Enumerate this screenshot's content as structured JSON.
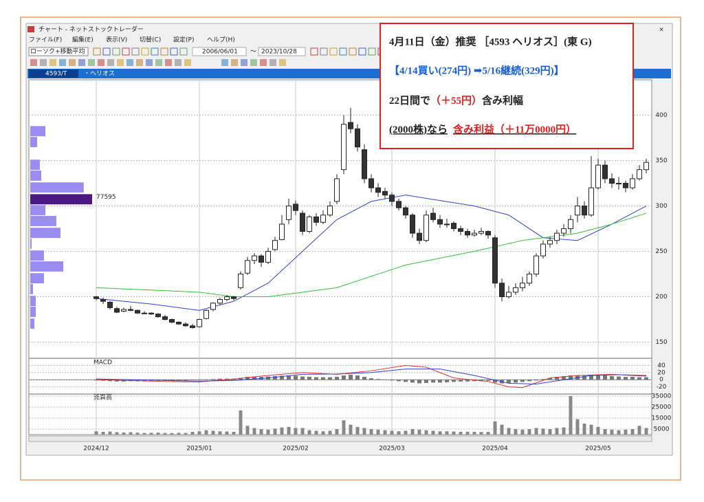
{
  "window": {
    "title": "チャート - ネットストックトレーダー",
    "close": "×",
    "menu": [
      "ファイル(F)",
      "編集(E)",
      "表示(V)",
      "切替(C)",
      "設定(P)",
      "ヘルプ(H)"
    ],
    "chart_kind": "ローソク+移動平均",
    "date_from": "2006/06/01",
    "date_sep": "～",
    "date_to": "2023/10/28",
    "code": "4593/T",
    "name": "・ヘリオス"
  },
  "annotation": {
    "line1": "4月11日（金）推奨 ［4593 ヘリオス］(東 G)",
    "line2": "【4/14買い(274円) ➡5/16継続(329円)】",
    "line3": [
      "22日間で",
      "（＋55円）",
      "含み利幅"
    ],
    "line4": [
      "(2000株)なら",
      "含み利益（＋11万0000円）"
    ]
  },
  "chart_data": {
    "type": "candlestick",
    "ylim": [
      133,
      439
    ],
    "yticks": [
      150,
      200,
      250,
      300,
      350,
      400
    ],
    "xticks": [
      {
        "value": 0,
        "label": "2024/12"
      },
      {
        "value": 15,
        "label": "2025/01"
      },
      {
        "value": 29,
        "label": "2025/02"
      },
      {
        "value": 43,
        "label": "2025/03"
      },
      {
        "value": 58,
        "label": "2025/04"
      },
      {
        "value": 73,
        "label": "2025/05"
      }
    ],
    "candles": [
      [
        200,
        201,
        196,
        198
      ],
      [
        197,
        199,
        192,
        195
      ],
      [
        194,
        195,
        186,
        188
      ],
      [
        187,
        189,
        182,
        183
      ],
      [
        184,
        188,
        183,
        186
      ],
      [
        186,
        190,
        184,
        185
      ],
      [
        185,
        186,
        181,
        182
      ],
      [
        182,
        184,
        181,
        182
      ],
      [
        182,
        183,
        180,
        181
      ],
      [
        181,
        182,
        177,
        178
      ],
      [
        178,
        180,
        174,
        175
      ],
      [
        175,
        176,
        171,
        172
      ],
      [
        172,
        173,
        169,
        170
      ],
      [
        170,
        172,
        167,
        168
      ],
      [
        168,
        170,
        165,
        166
      ],
      [
        167,
        176,
        166,
        175
      ],
      [
        176,
        186,
        175,
        185
      ],
      [
        186,
        194,
        184,
        193
      ],
      [
        193,
        199,
        191,
        197
      ],
      [
        197,
        202,
        195,
        200
      ],
      [
        200,
        201,
        196,
        198
      ],
      [
        210,
        228,
        208,
        225
      ],
      [
        226,
        244,
        224,
        240
      ],
      [
        240,
        248,
        236,
        245
      ],
      [
        245,
        247,
        233,
        238
      ],
      [
        238,
        254,
        236,
        250
      ],
      [
        252,
        266,
        250,
        262
      ],
      [
        263,
        290,
        262,
        280
      ],
      [
        285,
        308,
        280,
        300
      ],
      [
        302,
        306,
        290,
        295
      ],
      [
        292,
        295,
        268,
        272
      ],
      [
        272,
        290,
        270,
        288
      ],
      [
        288,
        292,
        278,
        282
      ],
      [
        282,
        295,
        280,
        290
      ],
      [
        290,
        305,
        288,
        300
      ],
      [
        305,
        335,
        302,
        330
      ],
      [
        340,
        400,
        335,
        390
      ],
      [
        392,
        408,
        380,
        385
      ],
      [
        385,
        390,
        360,
        365
      ],
      [
        362,
        368,
        325,
        330
      ],
      [
        330,
        335,
        315,
        320
      ],
      [
        320,
        325,
        310,
        315
      ],
      [
        316,
        320,
        308,
        312
      ],
      [
        312,
        315,
        300,
        305
      ],
      [
        305,
        308,
        295,
        298
      ],
      [
        298,
        300,
        286,
        290
      ],
      [
        290,
        292,
        265,
        270
      ],
      [
        270,
        275,
        258,
        262
      ],
      [
        262,
        295,
        260,
        290
      ],
      [
        292,
        298,
        282,
        285
      ],
      [
        285,
        290,
        276,
        280
      ],
      [
        280,
        286,
        276,
        280
      ],
      [
        281,
        283,
        272,
        275
      ],
      [
        275,
        278,
        268,
        272
      ],
      [
        272,
        275,
        265,
        268
      ],
      [
        268,
        274,
        266,
        270
      ],
      [
        270,
        276,
        268,
        272
      ],
      [
        272,
        273,
        264,
        268
      ],
      [
        265,
        268,
        210,
        215
      ],
      [
        215,
        220,
        195,
        200
      ],
      [
        200,
        212,
        198,
        205
      ],
      [
        205,
        215,
        202,
        210
      ],
      [
        210,
        222,
        206,
        215
      ],
      [
        215,
        228,
        212,
        225
      ],
      [
        225,
        248,
        222,
        245
      ],
      [
        245,
        262,
        242,
        258
      ],
      [
        258,
        266,
        254,
        262
      ],
      [
        262,
        274,
        258,
        270
      ],
      [
        270,
        280,
        266,
        275
      ],
      [
        275,
        290,
        270,
        285
      ],
      [
        290,
        310,
        282,
        300
      ],
      [
        300,
        305,
        286,
        290
      ],
      [
        290,
        355,
        288,
        320
      ],
      [
        320,
        352,
        318,
        345
      ],
      [
        345,
        350,
        325,
        330
      ],
      [
        330,
        336,
        320,
        325
      ],
      [
        325,
        332,
        318,
        325
      ],
      [
        325,
        328,
        315,
        320
      ],
      [
        320,
        335,
        318,
        330
      ],
      [
        330,
        345,
        328,
        340
      ],
      [
        340,
        352,
        336,
        348
      ]
    ],
    "moving_averages": [
      {
        "color": "#3040d0",
        "x": [
          0,
          8,
          15,
          20,
          25,
          30,
          35,
          40,
          45,
          50,
          55,
          60,
          65,
          70,
          75,
          80
        ],
        "values": [
          198,
          192,
          185,
          195,
          215,
          250,
          285,
          305,
          312,
          306,
          300,
          290,
          265,
          262,
          280,
          300
        ]
      },
      {
        "color": "#30c030",
        "x": [
          0,
          15,
          20,
          25,
          35,
          45,
          55,
          62,
          70,
          75,
          80
        ],
        "values": [
          210,
          205,
          200,
          200,
          210,
          235,
          250,
          262,
          270,
          280,
          292
        ]
      }
    ],
    "volume_profile": {
      "label": "77595",
      "bin": 12,
      "prices": [
        382,
        370,
        345,
        333,
        320,
        307,
        295,
        283,
        270,
        258,
        245,
        233,
        220,
        208,
        195,
        183,
        170
      ],
      "values": [
        19000,
        8600,
        12000,
        13800,
        67000,
        77595,
        19000,
        32700,
        37900,
        1700,
        17200,
        41400,
        17200,
        3400,
        6900,
        6900,
        5200
      ],
      "highlight": 5
    },
    "macd": {
      "label": "MACD",
      "ylim": [
        -38,
        58
      ],
      "yticks": [
        40,
        20,
        0,
        -20
      ],
      "histogram": [
        -2,
        -3,
        -4,
        -5,
        -5,
        -4,
        -4,
        -3,
        -3,
        -3,
        -3,
        -2,
        -2,
        -2,
        -1,
        0,
        1,
        2,
        3,
        3,
        3,
        5,
        8,
        9,
        8,
        9,
        10,
        11,
        12,
        11,
        9,
        8,
        7,
        7,
        7,
        8,
        12,
        14,
        12,
        8,
        4,
        2,
        0,
        -2,
        -4,
        -6,
        -8,
        -10,
        -9,
        -8,
        -8,
        -7,
        -6,
        -5,
        -5,
        -4,
        -4,
        -3,
        -8,
        -10,
        -9,
        -8,
        -6,
        -4,
        -2,
        2,
        5,
        8,
        10,
        12,
        12,
        11,
        12,
        13,
        12,
        10,
        9,
        8,
        8,
        7,
        7
      ],
      "lines": [
        {
          "color": "#e03030",
          "x": [
            0,
            10,
            15,
            20,
            25,
            30,
            35,
            40,
            45,
            48,
            52,
            57,
            60,
            62,
            66,
            70,
            75,
            80
          ],
          "values": [
            0,
            -5,
            -6,
            2,
            12,
            20,
            15,
            25,
            40,
            35,
            5,
            -5,
            -20,
            -22,
            5,
            12,
            15,
            10
          ]
        },
        {
          "color": "#3040d0",
          "x": [
            0,
            10,
            15,
            20,
            25,
            30,
            35,
            40,
            45,
            50,
            55,
            60,
            64,
            68,
            72,
            76,
            80
          ],
          "values": [
            2,
            -2,
            -4,
            -2,
            5,
            15,
            16,
            20,
            30,
            30,
            12,
            -10,
            -12,
            0,
            12,
            14,
            12
          ]
        }
      ]
    },
    "volume": {
      "label": "売買高",
      "ylim": [
        0,
        36250
      ],
      "yticks": [
        35000,
        25000,
        15000,
        5000
      ],
      "values": [
        3000,
        2500,
        2800,
        2200,
        2000,
        2200,
        1800,
        1500,
        1600,
        1800,
        1500,
        1400,
        1600,
        1500,
        2500,
        3000,
        4000,
        3500,
        3000,
        2800,
        2500,
        22000,
        8000,
        6000,
        5000,
        4500,
        5500,
        6500,
        7000,
        6000,
        6000,
        4000,
        3500,
        3000,
        3500,
        5000,
        13000,
        9000,
        7000,
        6000,
        5000,
        4500,
        4000,
        3500,
        3000,
        3500,
        5000,
        4500,
        4000,
        3500,
        3000,
        3000,
        2800,
        2500,
        2600,
        2500,
        2400,
        2400,
        12000,
        9000,
        6000,
        5000,
        4500,
        5000,
        6000,
        5500,
        5000,
        6000,
        6500,
        35000,
        14000,
        10000,
        9000,
        7000,
        5000,
        4500,
        4000,
        4500,
        5000,
        8000,
        6000
      ]
    }
  }
}
